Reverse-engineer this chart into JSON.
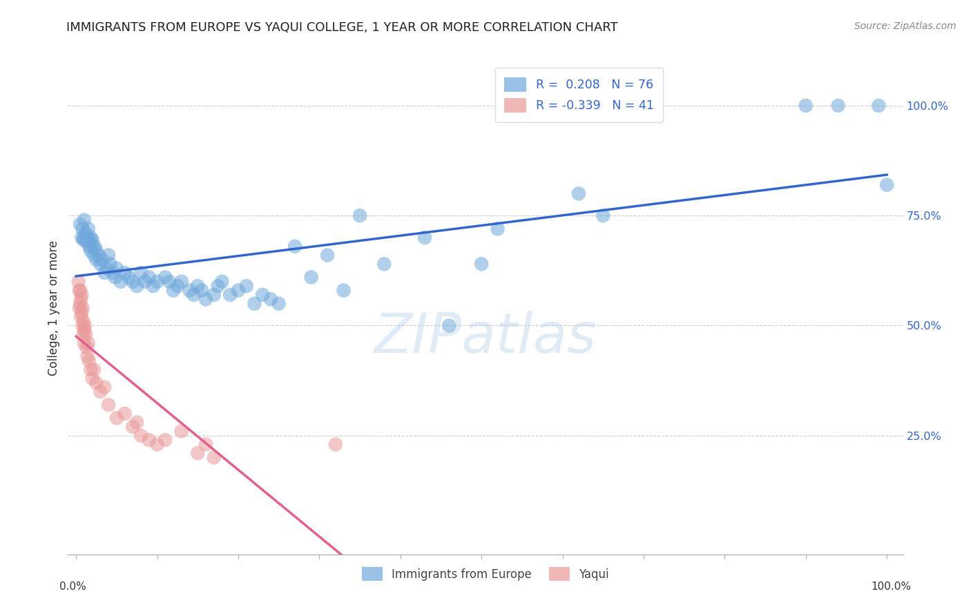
{
  "title": "IMMIGRANTS FROM EUROPE VS YAQUI COLLEGE, 1 YEAR OR MORE CORRELATION CHART",
  "source": "Source: ZipAtlas.com",
  "ylabel": "College, 1 year or more",
  "watermark": "ZIPatlas",
  "legend_labels": [
    "Immigrants from Europe",
    "Yaqui"
  ],
  "blue_R": "0.208",
  "blue_N": "76",
  "pink_R": "-0.339",
  "pink_N": "41",
  "blue_color": "#6fa8dc",
  "pink_color": "#ea9999",
  "blue_line_color": "#3366cc",
  "pink_line_color": "#cc3366",
  "pink_line_color_solid": "#e06090",
  "background": "#ffffff",
  "blue_points_x": [
    0.005,
    0.007,
    0.008,
    0.009,
    0.01,
    0.01,
    0.012,
    0.013,
    0.014,
    0.015,
    0.016,
    0.017,
    0.018,
    0.018,
    0.02,
    0.02,
    0.022,
    0.023,
    0.025,
    0.025,
    0.028,
    0.03,
    0.032,
    0.035,
    0.038,
    0.04,
    0.042,
    0.045,
    0.048,
    0.05,
    0.055,
    0.06,
    0.065,
    0.07,
    0.075,
    0.08,
    0.085,
    0.09,
    0.095,
    0.1,
    0.11,
    0.115,
    0.12,
    0.125,
    0.13,
    0.14,
    0.145,
    0.15,
    0.155,
    0.16,
    0.17,
    0.175,
    0.18,
    0.19,
    0.2,
    0.21,
    0.22,
    0.23,
    0.24,
    0.25,
    0.27,
    0.29,
    0.31,
    0.33,
    0.35,
    0.38,
    0.43,
    0.46,
    0.5,
    0.52,
    0.62,
    0.65,
    0.9,
    0.94,
    0.99,
    1.0
  ],
  "blue_points_y": [
    0.73,
    0.7,
    0.72,
    0.695,
    0.74,
    0.7,
    0.71,
    0.69,
    0.7,
    0.72,
    0.68,
    0.69,
    0.67,
    0.7,
    0.68,
    0.695,
    0.66,
    0.68,
    0.67,
    0.65,
    0.66,
    0.64,
    0.65,
    0.62,
    0.63,
    0.66,
    0.64,
    0.62,
    0.61,
    0.63,
    0.6,
    0.62,
    0.61,
    0.6,
    0.59,
    0.62,
    0.6,
    0.61,
    0.59,
    0.6,
    0.61,
    0.6,
    0.58,
    0.59,
    0.6,
    0.58,
    0.57,
    0.59,
    0.58,
    0.56,
    0.57,
    0.59,
    0.6,
    0.57,
    0.58,
    0.59,
    0.55,
    0.57,
    0.56,
    0.55,
    0.68,
    0.61,
    0.66,
    0.58,
    0.75,
    0.64,
    0.7,
    0.5,
    0.64,
    0.72,
    0.8,
    0.75,
    1.0,
    1.0,
    1.0,
    0.82
  ],
  "pink_points_x": [
    0.003,
    0.004,
    0.004,
    0.005,
    0.005,
    0.006,
    0.006,
    0.007,
    0.007,
    0.008,
    0.008,
    0.009,
    0.009,
    0.01,
    0.01,
    0.011,
    0.012,
    0.013,
    0.014,
    0.015,
    0.016,
    0.018,
    0.02,
    0.022,
    0.025,
    0.03,
    0.035,
    0.04,
    0.05,
    0.06,
    0.07,
    0.075,
    0.08,
    0.09,
    0.1,
    0.11,
    0.13,
    0.15,
    0.16,
    0.17,
    0.32
  ],
  "pink_points_y": [
    0.6,
    0.58,
    0.54,
    0.58,
    0.55,
    0.56,
    0.52,
    0.57,
    0.53,
    0.54,
    0.5,
    0.51,
    0.48,
    0.49,
    0.46,
    0.5,
    0.48,
    0.45,
    0.43,
    0.46,
    0.42,
    0.4,
    0.38,
    0.4,
    0.37,
    0.35,
    0.36,
    0.32,
    0.29,
    0.3,
    0.27,
    0.28,
    0.25,
    0.24,
    0.23,
    0.24,
    0.26,
    0.21,
    0.23,
    0.2,
    0.23
  ],
  "xlim": [
    -0.01,
    1.02
  ],
  "ylim": [
    -0.02,
    1.1
  ],
  "yticks": [
    0.0,
    0.25,
    0.5,
    0.75,
    1.0
  ],
  "ytick_labels": [
    "",
    "25.0%",
    "50.0%",
    "75.0%",
    "100.0%"
  ]
}
